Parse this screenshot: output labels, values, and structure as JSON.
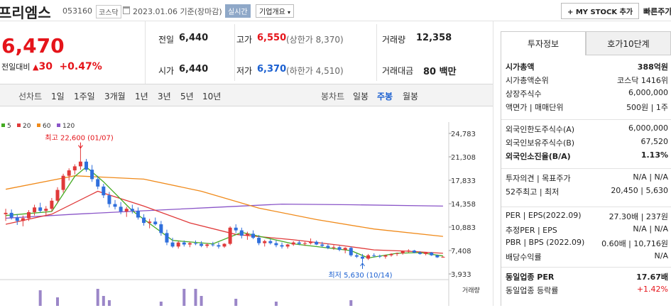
{
  "header": {
    "company_name": "프리엠스",
    "code": "053160",
    "market": "코스닥",
    "date_text": "2023.01.06 기준(장마감)",
    "realtime_label": "실시간",
    "overview_label": "기업개요",
    "mystock_label": "+ MY STOCK 추가",
    "quick_search_label": "빠른주가"
  },
  "price": {
    "current": "6,470",
    "change_label": "전일대비",
    "change_amount": "30",
    "change_pct": "+0.47%"
  },
  "quote": {
    "prev_close_label": "전일",
    "prev_close": "6,440",
    "high_label": "고가",
    "high": "6,550",
    "upper_limit": "(상한가 8,370)",
    "volume_label": "거래량",
    "volume": "12,358",
    "open_label": "시가",
    "open": "6,440",
    "low_label": "저가",
    "low": "6,370",
    "lower_limit": "(하한가 4,510)",
    "amount_label": "거래대금",
    "amount": "80 백만"
  },
  "chart_nav": {
    "line_label": "선차트",
    "periods": [
      "1일",
      "1주일",
      "3개월",
      "1년",
      "3년",
      "5년",
      "10년"
    ],
    "candle_label": "봉차트",
    "candle_periods": [
      "일봉",
      "주봉",
      "월봉"
    ],
    "active_candle": "주봉"
  },
  "chart_data": {
    "type": "candlestick",
    "legend": [
      {
        "name": "5",
        "color": "#44aa22"
      },
      {
        "name": "20",
        "color": "#e03a3a"
      },
      {
        "name": "60",
        "color": "#f08a1a"
      },
      {
        "name": "120",
        "color": "#8a55c8"
      }
    ],
    "y_ticks": [
      "24,783",
      "21,308",
      "17,833",
      "14,358",
      "10,883",
      "7,408",
      "3,933"
    ],
    "ylim": [
      3933,
      24783
    ],
    "high_annotation": "최고 22,600 (01/07)",
    "low_annotation": "최저 5,630 (10/14)",
    "volume_label": "거래량",
    "up_color": "#e03a3a",
    "down_color": "#2f6fdc",
    "candles": [
      [
        12800,
        13600,
        11800,
        13000
      ],
      [
        13000,
        13500,
        12000,
        12300
      ],
      [
        12300,
        12800,
        11200,
        11800
      ],
      [
        11800,
        12600,
        11000,
        12200
      ],
      [
        12200,
        13400,
        11800,
        13100
      ],
      [
        13100,
        14200,
        12600,
        13800
      ],
      [
        13800,
        14500,
        13000,
        13300
      ],
      [
        13300,
        14000,
        12500,
        13600
      ],
      [
        13600,
        15200,
        13200,
        14800
      ],
      [
        14800,
        16800,
        14400,
        16400
      ],
      [
        16400,
        18800,
        16000,
        18500
      ],
      [
        18500,
        19600,
        17800,
        19300
      ],
      [
        19300,
        20200,
        18700,
        19900
      ],
      [
        19900,
        22600,
        19400,
        20600
      ],
      [
        20600,
        21000,
        19100,
        19400
      ],
      [
        19400,
        20100,
        17600,
        18000
      ],
      [
        18000,
        18500,
        16500,
        16900
      ],
      [
        16900,
        17300,
        15200,
        15600
      ],
      [
        15600,
        16100,
        13800,
        14300
      ],
      [
        14300,
        14900,
        13500,
        13900
      ],
      [
        13900,
        14600,
        12800,
        13200
      ],
      [
        13200,
        13900,
        12400,
        13600
      ],
      [
        13600,
        14200,
        12900,
        13300
      ],
      [
        13300,
        13800,
        12000,
        12300
      ],
      [
        12300,
        12800,
        11100,
        11500
      ],
      [
        11500,
        12100,
        10700,
        11700
      ],
      [
        11700,
        12300,
        11100,
        11300
      ],
      [
        11300,
        11800,
        9600,
        10000
      ],
      [
        10000,
        10500,
        8200,
        8600
      ],
      [
        8600,
        9300,
        7800,
        8000
      ],
      [
        8000,
        8800,
        7700,
        8600
      ],
      [
        8600,
        8900,
        8000,
        8300
      ],
      [
        8300,
        8700,
        7900,
        8500
      ],
      [
        8500,
        8900,
        8200,
        8400
      ],
      [
        8400,
        8800,
        7900,
        8100
      ],
      [
        8100,
        8500,
        7800,
        8300
      ],
      [
        8300,
        8700,
        8000,
        8200
      ],
      [
        8200,
        8600,
        7700,
        8000
      ],
      [
        8000,
        8500,
        7800,
        8400
      ],
      [
        8400,
        11000,
        8200,
        10800
      ],
      [
        10800,
        11300,
        10000,
        10400
      ],
      [
        10400,
        10800,
        9200,
        9600
      ],
      [
        9600,
        10200,
        9000,
        9900
      ],
      [
        9900,
        10400,
        9100,
        9300
      ],
      [
        9300,
        9700,
        8200,
        8500
      ],
      [
        8500,
        9000,
        8000,
        8800
      ],
      [
        8800,
        9100,
        8300,
        8500
      ],
      [
        8500,
        8900,
        7900,
        8200
      ],
      [
        8200,
        8600,
        7700,
        8000
      ],
      [
        8000,
        8400,
        7700,
        8300
      ],
      [
        8300,
        8800,
        8100,
        8600
      ],
      [
        8600,
        8900,
        8200,
        8400
      ],
      [
        8400,
        8700,
        8100,
        8500
      ],
      [
        8500,
        9200,
        8300,
        8700
      ],
      [
        8700,
        8900,
        8200,
        8300
      ],
      [
        8300,
        8700,
        7900,
        8100
      ],
      [
        8100,
        8400,
        7600,
        7800
      ],
      [
        7800,
        8200,
        7500,
        7900
      ],
      [
        7900,
        8100,
        7300,
        7500
      ],
      [
        7500,
        7900,
        7000,
        7800
      ],
      [
        7800,
        8000,
        6500,
        6700
      ],
      [
        6700,
        7000,
        6300,
        6500
      ],
      [
        6500,
        6900,
        5630,
        6200
      ],
      [
        6200,
        6900,
        6000,
        6700
      ],
      [
        6700,
        7000,
        6400,
        6600
      ],
      [
        6600,
        6800,
        6300,
        6500
      ],
      [
        6500,
        6800,
        6200,
        6700
      ],
      [
        6700,
        7000,
        6500,
        6900
      ],
      [
        6900,
        7100,
        6600,
        7000
      ],
      [
        7000,
        7400,
        6800,
        7300
      ],
      [
        7300,
        7600,
        7100,
        7400
      ],
      [
        7400,
        7500,
        7000,
        7100
      ],
      [
        7100,
        7300,
        6800,
        6900
      ],
      [
        6900,
        7200,
        6700,
        7100
      ],
      [
        7100,
        7200,
        6600,
        6700
      ],
      [
        6700,
        6800,
        6300,
        6400
      ],
      [
        6440,
        6550,
        6370,
        6470
      ]
    ],
    "ma5": [
      [
        0,
        12600
      ],
      [
        8,
        13200
      ],
      [
        12,
        18400
      ],
      [
        14,
        19800
      ],
      [
        17,
        17600
      ],
      [
        22,
        13300
      ],
      [
        29,
        8900
      ],
      [
        36,
        8400
      ],
      [
        41,
        10100
      ],
      [
        50,
        8400
      ],
      [
        60,
        7400
      ],
      [
        63,
        6300
      ],
      [
        68,
        7000
      ],
      [
        72,
        7100
      ],
      [
        76,
        6600
      ]
    ],
    "ma20": [
      [
        0,
        11300
      ],
      [
        8,
        12800
      ],
      [
        16,
        16200
      ],
      [
        24,
        14000
      ],
      [
        32,
        11500
      ],
      [
        40,
        9800
      ],
      [
        50,
        9000
      ],
      [
        58,
        8200
      ],
      [
        64,
        7500
      ],
      [
        70,
        7300
      ],
      [
        76,
        7000
      ]
    ],
    "ma60": [
      [
        0,
        16500
      ],
      [
        12,
        18500
      ],
      [
        24,
        18000
      ],
      [
        34,
        16200
      ],
      [
        44,
        13700
      ],
      [
        54,
        12000
      ],
      [
        64,
        10600
      ],
      [
        76,
        9500
      ]
    ],
    "ma120": [
      [
        0,
        12200
      ],
      [
        12,
        12800
      ],
      [
        24,
        13300
      ],
      [
        36,
        13800
      ],
      [
        48,
        14300
      ],
      [
        60,
        14200
      ],
      [
        76,
        14000
      ]
    ],
    "volume": [
      [
        6,
        22
      ],
      [
        9,
        12
      ],
      [
        16,
        24
      ],
      [
        17,
        14
      ],
      [
        18,
        8
      ],
      [
        27,
        6
      ],
      [
        31,
        24
      ],
      [
        33,
        24
      ],
      [
        34,
        14
      ],
      [
        40,
        10
      ],
      [
        47,
        6
      ],
      [
        60,
        8
      ]
    ]
  },
  "side": {
    "tab_active": "투자정보",
    "tab_other": "호가10단계",
    "rows1": [
      {
        "k": "시가총액",
        "v": "388억원",
        "bold": true
      },
      {
        "k": "시가총액순위",
        "v": "코스닥 1416위"
      },
      {
        "k": "상장주식수",
        "v": "6,000,000"
      },
      {
        "k": "액면가 | 매매단위",
        "v": "500원 | 1주"
      }
    ],
    "rows2": [
      {
        "k": "외국인한도주식수(A)",
        "v": "6,000,000"
      },
      {
        "k": "외국인보유주식수(B)",
        "v": "67,520"
      },
      {
        "k": "외국인소진율(B/A)",
        "v": "1.13%",
        "bold": true
      }
    ],
    "rows3": [
      {
        "k": "투자의견 | 목표주가",
        "v": "N/A | N/A"
      },
      {
        "k": "52주최고 | 최저",
        "v": "20,450 | 5,630"
      }
    ],
    "rows4": [
      {
        "k": "PER | EPS(2022.09)",
        "v": "27.30배 | 237원"
      },
      {
        "k": "추정PER | EPS",
        "v": "N/A | N/A"
      },
      {
        "k": "PBR | BPS (2022.09)",
        "v": "0.60배 | 10,716원"
      },
      {
        "k": "배당수익률",
        "v": "N/A"
      }
    ],
    "rows5": [
      {
        "k": "동일업종 PER",
        "v": "17.67배",
        "bold": true
      },
      {
        "k": "동일업종 등락률",
        "v": "+1.42%",
        "red": true
      }
    ]
  }
}
